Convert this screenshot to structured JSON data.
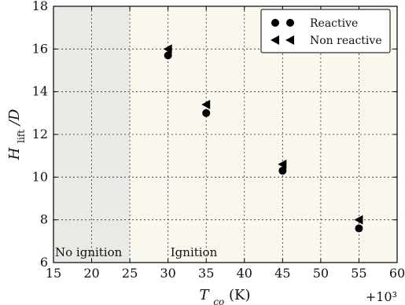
{
  "chart_data": {
    "type": "scatter",
    "title": "",
    "xlabel": "T_co (K)",
    "xlabel_parts": {
      "symbol": "T",
      "subscript": "co",
      "unit": " (K)"
    },
    "ylabel": "H_lift/D",
    "ylabel_parts": {
      "symbol": "H",
      "subscript": "lift",
      "rest": "/D"
    },
    "x_multiplier_label": "+10³",
    "xlim": [
      15,
      60
    ],
    "ylim": [
      6,
      18
    ],
    "xticks": [
      15,
      20,
      25,
      30,
      35,
      40,
      45,
      50,
      55,
      60
    ],
    "yticks": [
      6,
      8,
      10,
      12,
      14,
      16,
      18
    ],
    "grid": true,
    "legend_position": "top-right",
    "regions": [
      {
        "label": "No ignition",
        "x_start": 15,
        "x_end": 25,
        "color": "#e9e9e6"
      },
      {
        "label": "Ignition",
        "x_start": 25,
        "x_end": 60,
        "color": "#fbf8f0"
      }
    ],
    "series": [
      {
        "name": "Reactive",
        "marker": "circle",
        "color": "#000000",
        "points": [
          {
            "x": 30,
            "y": 15.7
          },
          {
            "x": 35,
            "y": 13.0
          },
          {
            "x": 45,
            "y": 10.3
          },
          {
            "x": 55,
            "y": 7.6
          }
        ]
      },
      {
        "name": "Non reactive",
        "marker": "triangle-left",
        "color": "#000000",
        "points": [
          {
            "x": 30,
            "y": 16.0
          },
          {
            "x": 35,
            "y": 13.4
          },
          {
            "x": 45,
            "y": 10.6
          },
          {
            "x": 55,
            "y": 8.0
          }
        ]
      }
    ]
  }
}
